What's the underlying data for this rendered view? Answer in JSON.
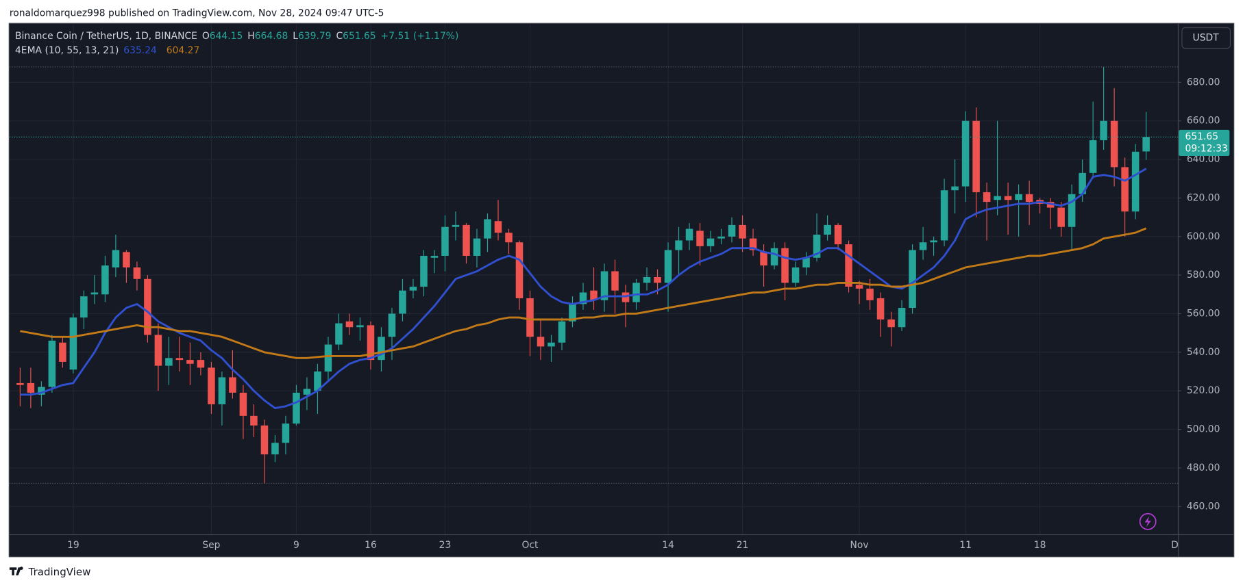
{
  "header": {
    "text": "ronaldomarquez998 published on TradingView.com, Nov 28, 2024 09:47 UTC-5"
  },
  "footer": {
    "brand": "TradingView"
  },
  "chart_data": {
    "type": "candlestick",
    "title": "Binance Coin / TetherUS, 1D, BINANCE",
    "indicator": "4EMA (10, 55, 13, 21)",
    "currency": "USDT",
    "countdown": "09:12:33",
    "ohlc_letters": [
      "O",
      "H",
      "L",
      "C"
    ],
    "change": {
      "value": 7.51,
      "label": "+7.51"
    },
    "change_pct": {
      "value": 1.17,
      "label": "(+1.17%)"
    },
    "up_color": "#26a69a",
    "down_color": "#ef5350",
    "x": [
      "2024-08-14",
      "2024-08-15",
      "2024-08-16",
      "2024-08-17",
      "2024-08-18",
      "2024-08-19",
      "2024-08-20",
      "2024-08-21",
      "2024-08-22",
      "2024-08-23",
      "2024-08-24",
      "2024-08-25",
      "2024-08-26",
      "2024-08-27",
      "2024-08-28",
      "2024-08-29",
      "2024-08-30",
      "2024-08-31",
      "2024-09-01",
      "2024-09-02",
      "2024-09-03",
      "2024-09-04",
      "2024-09-05",
      "2024-09-06",
      "2024-09-07",
      "2024-09-08",
      "2024-09-09",
      "2024-09-10",
      "2024-09-11",
      "2024-09-12",
      "2024-09-13",
      "2024-09-14",
      "2024-09-15",
      "2024-09-16",
      "2024-09-17",
      "2024-09-18",
      "2024-09-19",
      "2024-09-20",
      "2024-09-21",
      "2024-09-22",
      "2024-09-23",
      "2024-09-24",
      "2024-09-25",
      "2024-09-26",
      "2024-09-27",
      "2024-09-28",
      "2024-09-29",
      "2024-09-30",
      "2024-10-01",
      "2024-10-02",
      "2024-10-03",
      "2024-10-04",
      "2024-10-05",
      "2024-10-06",
      "2024-10-07",
      "2024-10-08",
      "2024-10-09",
      "2024-10-10",
      "2024-10-11",
      "2024-10-12",
      "2024-10-13",
      "2024-10-14",
      "2024-10-15",
      "2024-10-16",
      "2024-10-17",
      "2024-10-18",
      "2024-10-19",
      "2024-10-20",
      "2024-10-21",
      "2024-10-22",
      "2024-10-23",
      "2024-10-24",
      "2024-10-25",
      "2024-10-26",
      "2024-10-27",
      "2024-10-28",
      "2024-10-29",
      "2024-10-30",
      "2024-10-31",
      "2024-11-01",
      "2024-11-02",
      "2024-11-03",
      "2024-11-04",
      "2024-11-05",
      "2024-11-06",
      "2024-11-07",
      "2024-11-08",
      "2024-11-09",
      "2024-11-10",
      "2024-11-11",
      "2024-11-12",
      "2024-11-13",
      "2024-11-14",
      "2024-11-15",
      "2024-11-16",
      "2024-11-17",
      "2024-11-18",
      "2024-11-19",
      "2024-11-20",
      "2024-11-21",
      "2024-11-22",
      "2024-11-23",
      "2024-11-24",
      "2024-11-25",
      "2024-11-26",
      "2024-11-27",
      "2024-11-28"
    ],
    "open": [
      524,
      524,
      518,
      522,
      545,
      531,
      558,
      570,
      570,
      584,
      592,
      584,
      578,
      549,
      533,
      537,
      536,
      536,
      532,
      513,
      527,
      519,
      507,
      502,
      487,
      493,
      503,
      518,
      520,
      530,
      544,
      556,
      553,
      554,
      536,
      548,
      560,
      572,
      574,
      589,
      590,
      605,
      606,
      590,
      599,
      608,
      602,
      597,
      568,
      548,
      543,
      545,
      556,
      565,
      572,
      567,
      582,
      571,
      566,
      576,
      579,
      576,
      593,
      598,
      603,
      595,
      599,
      600,
      606,
      599,
      592,
      585,
      594,
      576,
      584,
      589,
      601,
      606,
      596,
      575,
      573,
      568,
      557,
      553,
      563,
      593,
      597,
      598,
      624,
      626,
      660,
      623,
      619,
      621,
      619,
      622,
      619,
      618,
      615,
      605,
      622,
      633,
      650,
      660,
      636,
      613,
      644.15
    ],
    "high": [
      532,
      532,
      525,
      549,
      548,
      560,
      572,
      580,
      590,
      601,
      593,
      587,
      580,
      555,
      548,
      548,
      545,
      540,
      535,
      530,
      541,
      523,
      513,
      505,
      497,
      507,
      523,
      527,
      534,
      548,
      560,
      560,
      558,
      556,
      553,
      563,
      578,
      578,
      593,
      593,
      611,
      613,
      607,
      604,
      612,
      619,
      604,
      598,
      572,
      557,
      549,
      558,
      569,
      576,
      584,
      586,
      588,
      575,
      578,
      584,
      583,
      597,
      605,
      607,
      607,
      603,
      604,
      610,
      611,
      604,
      596,
      597,
      597,
      587,
      592,
      612,
      611,
      607,
      598,
      577,
      578,
      571,
      561,
      567,
      596,
      605,
      600,
      630,
      640,
      665,
      667,
      628,
      660,
      628,
      627,
      629,
      620,
      620,
      618,
      627,
      640,
      670,
      688,
      677,
      641,
      648,
      664.68
    ],
    "low": [
      512,
      511,
      512,
      519,
      532,
      529,
      552,
      565,
      566,
      579,
      576,
      572,
      545,
      520,
      523,
      530,
      523,
      528,
      508,
      502,
      516,
      495,
      496,
      472,
      483,
      487,
      502,
      510,
      508,
      525,
      541,
      549,
      546,
      531,
      530,
      536,
      556,
      568,
      569,
      581,
      582,
      598,
      586,
      584,
      592,
      598,
      591,
      562,
      538,
      536,
      535,
      541,
      553,
      562,
      562,
      561,
      560,
      553,
      562,
      572,
      570,
      561,
      580,
      593,
      585,
      592,
      596,
      597,
      592,
      590,
      574,
      583,
      567,
      574,
      580,
      587,
      598,
      593,
      571,
      565,
      562,
      548,
      543,
      551,
      560,
      588,
      590,
      595,
      612,
      618,
      610,
      598,
      611,
      601,
      600,
      606,
      612,
      604,
      600,
      593,
      618,
      630,
      645,
      626,
      600,
      609,
      639.79
    ],
    "close": [
      523,
      519,
      522,
      546,
      535,
      558,
      569,
      571,
      585,
      593,
      584,
      578,
      549,
      533,
      537,
      536,
      534,
      532,
      513,
      527,
      519,
      507,
      502,
      487,
      493,
      503,
      519,
      521,
      530,
      544,
      555,
      553,
      554,
      536,
      548,
      560,
      572,
      574,
      590,
      590,
      605,
      606,
      590,
      599,
      609,
      602,
      597,
      568,
      548,
      543,
      545,
      556,
      565,
      571,
      567,
      582,
      572,
      566,
      576,
      579,
      576,
      593,
      598,
      604,
      595,
      599,
      600,
      606,
      599,
      593,
      585,
      594,
      576,
      584,
      589,
      601,
      606,
      596,
      574,
      573,
      567,
      557,
      553,
      563,
      593,
      597,
      598,
      624,
      626,
      660,
      623,
      618,
      621,
      619,
      622,
      618,
      617,
      615,
      605,
      622,
      633,
      650,
      660,
      636,
      613,
      644,
      651.65
    ],
    "series": [
      {
        "color": "#3050d0",
        "values": [
          518,
          518,
          519,
          521,
          523,
          524,
          532,
          540,
          550,
          558,
          563,
          565,
          561,
          556,
          553,
          550,
          548,
          546,
          541,
          537,
          531,
          526,
          520,
          515,
          511,
          512,
          514,
          517,
          520,
          525,
          530,
          534,
          536,
          537,
          539,
          542,
          547,
          552,
          558,
          564,
          571,
          578,
          580,
          582,
          585,
          588,
          590,
          588,
          581,
          574,
          569,
          566,
          565,
          566,
          567,
          569,
          569,
          569,
          570,
          570,
          572,
          575,
          580,
          584,
          587,
          589,
          591,
          594,
          594,
          594,
          592,
          591,
          589,
          588,
          589,
          591,
          594,
          594,
          590,
          586,
          582,
          578,
          574,
          573,
          576,
          580,
          584,
          590,
          598,
          609,
          612,
          614,
          615,
          616,
          617,
          617,
          618,
          617,
          616,
          618,
          622,
          631,
          632,
          631,
          629,
          632,
          635.24
        ]
      },
      {
        "color": "#c17a17",
        "values": [
          551,
          550,
          549,
          548,
          548,
          548,
          549,
          550,
          551,
          552,
          553,
          554,
          553,
          553,
          552,
          551,
          551,
          550,
          549,
          548,
          546,
          544,
          542,
          540,
          539,
          538,
          537,
          537,
          537.5,
          538,
          538,
          538,
          538,
          539,
          540,
          541,
          542,
          543,
          545,
          547,
          549,
          551,
          552,
          554,
          555,
          557,
          558,
          558,
          557,
          557,
          557,
          557,
          557,
          558,
          558,
          559,
          559,
          560,
          560,
          561,
          562,
          563,
          564,
          565,
          566,
          567,
          568,
          569,
          570,
          571,
          571,
          572,
          573,
          573,
          574,
          575,
          575,
          576,
          576,
          576,
          575,
          575,
          574,
          574,
          575,
          576,
          578,
          580,
          582,
          584,
          585,
          586,
          587,
          588,
          589,
          590,
          590,
          591,
          592,
          593,
          594,
          596,
          599,
          600,
          601,
          602,
          604.27
        ]
      }
    ],
    "xlim": [
      "2024-08-13",
      "2024-12-01"
    ],
    "xticks": [
      {
        "value": "2024-08-19",
        "label": "19"
      },
      {
        "value": "2024-09-01",
        "label": "Sep"
      },
      {
        "value": "2024-09-09",
        "label": "9"
      },
      {
        "value": "2024-09-16",
        "label": "16"
      },
      {
        "value": "2024-09-23",
        "label": "23"
      },
      {
        "value": "2024-10-01",
        "label": "Oct"
      },
      {
        "value": "2024-10-14",
        "label": "14"
      },
      {
        "value": "2024-10-21",
        "label": "21"
      },
      {
        "value": "2024-11-01",
        "label": "Nov"
      },
      {
        "value": "2024-11-11",
        "label": "11"
      },
      {
        "value": "2024-11-18",
        "label": "18"
      },
      {
        "value": "2024-12-01",
        "label": "D"
      }
    ],
    "ylim": [
      445.6,
      710.4
    ],
    "yticks": [
      {
        "value": 460,
        "label": "460.00"
      },
      {
        "value": 480,
        "label": "480.00"
      },
      {
        "value": 500,
        "label": "500.00"
      },
      {
        "value": 520,
        "label": "520.00"
      },
      {
        "value": 540,
        "label": "540.00"
      },
      {
        "value": 560,
        "label": "560.00"
      },
      {
        "value": 580,
        "label": "580.00"
      },
      {
        "value": 600,
        "label": "600.00"
      },
      {
        "value": 620,
        "label": "620.00"
      },
      {
        "value": 640,
        "label": "640.00"
      },
      {
        "value": 660,
        "label": "660.00"
      },
      {
        "value": 680,
        "label": "680.00"
      }
    ],
    "grid": true
  }
}
